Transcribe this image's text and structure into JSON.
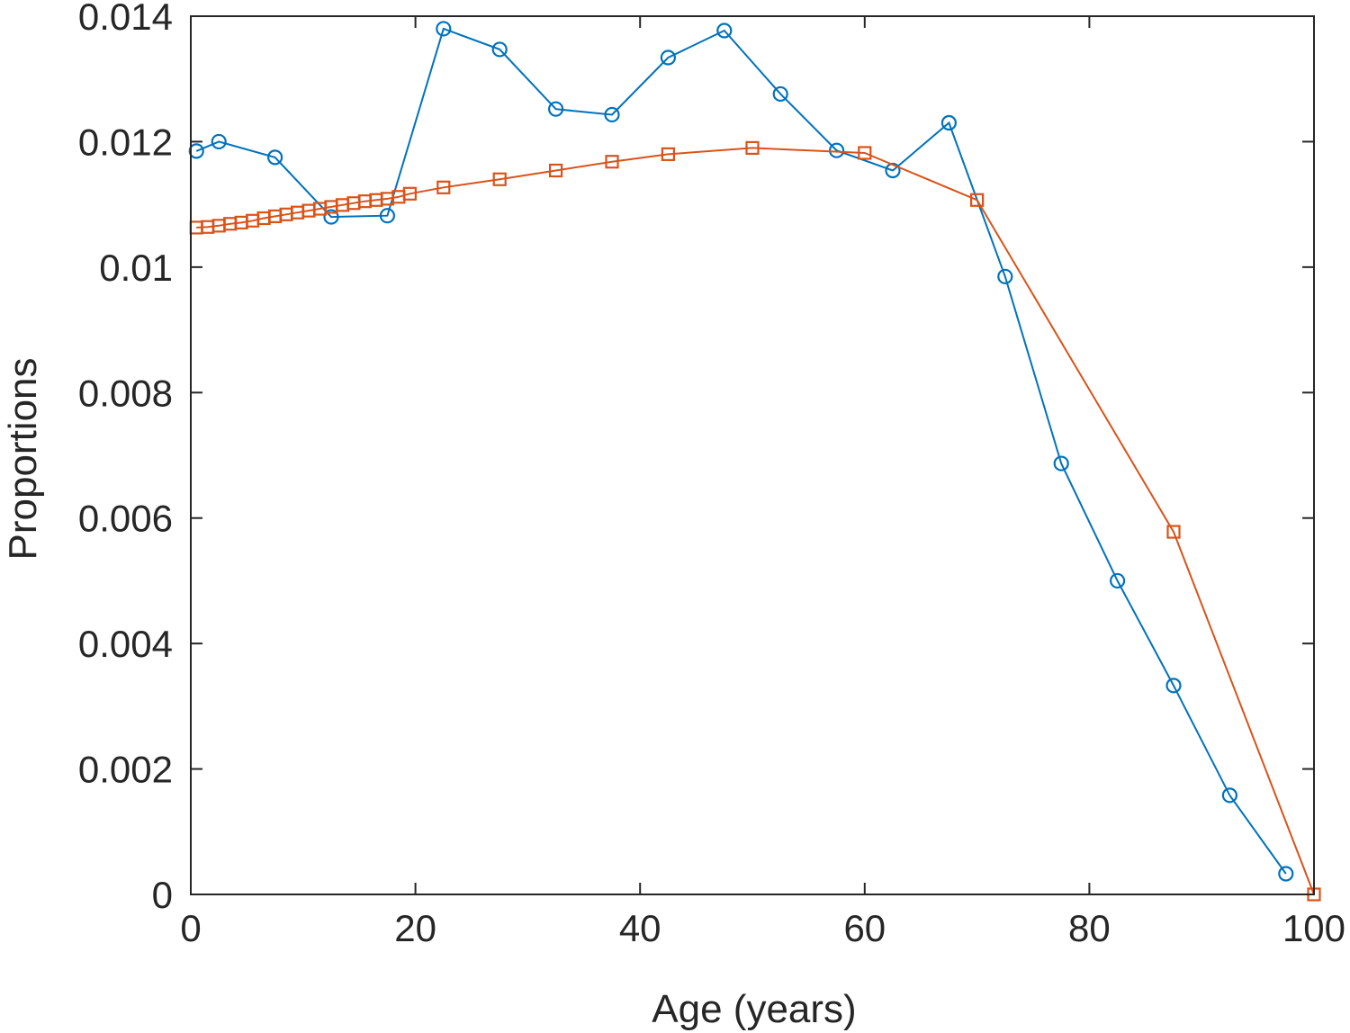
{
  "chart_data": {
    "type": "line",
    "title": "",
    "xlabel": "Age (years)",
    "ylabel": "Proportions",
    "xlim": [
      0,
      100
    ],
    "ylim": [
      0,
      0.014
    ],
    "xticks": [
      0,
      20,
      40,
      60,
      80,
      100
    ],
    "xtick_labels": [
      "0",
      "20",
      "40",
      "60",
      "80",
      "100"
    ],
    "yticks": [
      0,
      0.002,
      0.004,
      0.006,
      0.008,
      0.01,
      0.012,
      0.014
    ],
    "ytick_labels": [
      "0",
      "0.002",
      "0.004",
      "0.006",
      "0.008",
      "0.01",
      "0.012",
      "0.014"
    ],
    "grid": false,
    "series": [
      {
        "marker": "circle",
        "color": "#0072BD",
        "x": [
          0.5,
          2.5,
          7.5,
          12.5,
          17.5,
          22.5,
          27.5,
          32.5,
          37.5,
          42.5,
          47.5,
          52.5,
          57.5,
          62.5,
          67.5,
          72.5,
          77.5,
          82.5,
          87.5,
          92.5,
          97.5
        ],
        "y": [
          0.01185,
          0.012,
          0.01175,
          0.0108,
          0.01082,
          0.0138,
          0.01347,
          0.01252,
          0.01243,
          0.01334,
          0.01377,
          0.01276,
          0.01186,
          0.01154,
          0.0123,
          0.00985,
          0.00687,
          0.005,
          0.00333,
          0.00158,
          0.00033
        ]
      },
      {
        "marker": "square",
        "color": "#D95319",
        "x": [
          0.5,
          1.5,
          2.5,
          3.5,
          4.5,
          5.5,
          6.5,
          7.5,
          8.5,
          9.5,
          10.5,
          11.5,
          12.5,
          13.5,
          14.5,
          15.5,
          16.5,
          17.5,
          18.5,
          19.5,
          22.5,
          27.5,
          32.5,
          37.5,
          42.5,
          50,
          60,
          70,
          87.5,
          100
        ],
        "y": [
          0.01063,
          0.01064,
          0.01066,
          0.01069,
          0.01071,
          0.01074,
          0.01078,
          0.01081,
          0.01084,
          0.01087,
          0.0109,
          0.01093,
          0.01096,
          0.01099,
          0.01102,
          0.01105,
          0.01107,
          0.01109,
          0.01112,
          0.01117,
          0.01127,
          0.0114,
          0.01154,
          0.01168,
          0.0118,
          0.0119,
          0.01182,
          0.01107,
          0.00578,
          0.0
        ]
      }
    ]
  }
}
